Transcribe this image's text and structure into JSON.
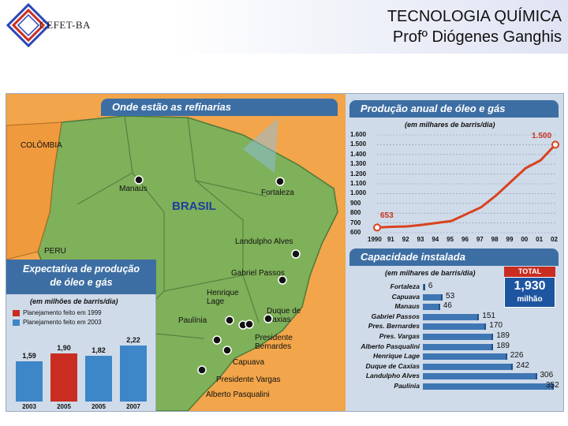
{
  "header": {
    "logo_text": "CEFET-BA",
    "title_line1": "TECNOLOGIA QUÍMICA",
    "title_line2": "Profº Diógenes Ganghis"
  },
  "map_panel": {
    "title": "Onde estão as refinarias",
    "country_label": "BRASIL",
    "neighbors": [
      "COLÔMBIA",
      "PERU"
    ],
    "cities": [
      "Manaus",
      "Fortaleza",
      "Landulpho Alves",
      "Gabriel Passos",
      "Henrique Lage",
      "Duque de Caxias",
      "Paulínia",
      "Presidente Bernardes",
      "Capuava",
      "Presidente Vargas",
      "Alberto Pasqualini"
    ]
  },
  "expectation_panel": {
    "title_line1": "Expectativa de produção",
    "title_line2": "de óleo e gás",
    "unit": "(em milhões de barris/dia)",
    "legend": [
      {
        "label": "Planejamento feito em 1999",
        "color": "#c92d21"
      },
      {
        "label": "Planejamento feito em 2003",
        "color": "#3d86c8"
      }
    ],
    "chart_data": {
      "type": "bar",
      "categories": [
        "2003",
        "2005",
        "2005",
        "2007"
      ],
      "values": [
        1.59,
        1.9,
        1.82,
        2.22
      ],
      "value_labels": [
        "1,59",
        "1,90",
        "1,82",
        "2,22"
      ],
      "colors": [
        "#3d86c8",
        "#c92d21",
        "#3d86c8",
        "#3d86c8"
      ],
      "ylim": [
        0,
        2.5
      ]
    }
  },
  "production_panel": {
    "title": "Produção anual de óleo e gás",
    "unit": "(em milhares de barris/dia)",
    "chart_data": {
      "type": "line",
      "x": [
        "1990",
        "91",
        "92",
        "93",
        "94",
        "95",
        "96",
        "97",
        "98",
        "99",
        "00",
        "01",
        "02"
      ],
      "values": [
        653,
        660,
        665,
        680,
        700,
        720,
        790,
        860,
        980,
        1120,
        1260,
        1340,
        1500
      ],
      "start_label": "653",
      "end_label": "1.500",
      "yticks": [
        "1.600",
        "1.500",
        "1.400",
        "1.300",
        "1.200",
        "1.100",
        "1.000",
        "900",
        "800",
        "700",
        "600"
      ],
      "ylim": [
        600,
        1600
      ]
    }
  },
  "capacity_panel": {
    "title": "Capacidade instalada",
    "unit": "(em milhares de barris/dia)",
    "total_label": "TOTAL",
    "total_value": "1,930",
    "total_unit": "milhão",
    "chart_data": {
      "type": "bar",
      "categories": [
        "Fortaleza",
        "Capuava",
        "Manaus",
        "Gabriel Passos",
        "Pres. Bernardes",
        "Pres. Vargas",
        "Alberto Pasqualini",
        "Henrique Lage",
        "Duque de Caxias",
        "Landulpho Alves",
        "Paulínia"
      ],
      "values": [
        6,
        53,
        46,
        151,
        170,
        189,
        189,
        226,
        242,
        306,
        352
      ],
      "xlim": [
        0,
        360
      ]
    }
  }
}
